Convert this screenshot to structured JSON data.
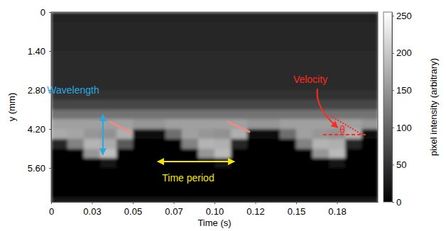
{
  "chart_data": {
    "type": "heatmap",
    "xlabel": "Time (s)",
    "ylabel": "y (mm)",
    "xlim": [
      0,
      0.2
    ],
    "ylim": [
      6.82,
      0
    ],
    "xticks": [
      0,
      {
        "value": 0.025,
        "label": "0.03"
      },
      0.05,
      {
        "value": 0.075,
        "label": "0.07"
      },
      {
        "value": 0.1,
        "label": "0.10"
      },
      {
        "value": 0.125,
        "label": "0.12"
      },
      0.15,
      {
        "value": 0.175,
        "label": "0.18"
      }
    ],
    "yticks": [
      0,
      {
        "value": 1.4,
        "label": "1.40"
      },
      {
        "value": 2.8,
        "label": "2.80"
      },
      {
        "value": 4.2,
        "label": "4.20"
      },
      {
        "value": 5.6,
        "label": "5.60"
      }
    ],
    "x_bins": [
      0,
      0.01,
      0.02,
      0.03,
      0.04,
      0.05,
      0.06,
      0.07,
      0.08,
      0.09,
      0.1,
      0.11,
      0.12,
      0.13,
      0.14,
      0.15,
      0.16,
      0.17,
      0.18,
      0.19,
      0.2
    ],
    "y_bins": [
      0,
      0.35,
      0.7,
      1.05,
      1.4,
      1.75,
      2.1,
      2.45,
      2.8,
      3.15,
      3.5,
      3.85,
      4.2,
      4.55,
      4.9,
      5.25,
      5.6,
      5.95,
      6.3,
      6.65,
      7.0
    ],
    "cells": [
      [
        32,
        32,
        32,
        32,
        32,
        32,
        32,
        32,
        32,
        32,
        32,
        32,
        32,
        32,
        32,
        32,
        32,
        32,
        32,
        32
      ],
      [
        38,
        38,
        38,
        38,
        38,
        38,
        38,
        38,
        38,
        38,
        38,
        38,
        38,
        38,
        38,
        38,
        38,
        38,
        38,
        38
      ],
      [
        38,
        38,
        38,
        38,
        38,
        38,
        38,
        38,
        38,
        38,
        38,
        38,
        38,
        38,
        38,
        38,
        38,
        38,
        38,
        38
      ],
      [
        38,
        38,
        38,
        38,
        38,
        38,
        38,
        38,
        38,
        38,
        38,
        38,
        38,
        38,
        38,
        38,
        38,
        38,
        38,
        38
      ],
      [
        42,
        42,
        42,
        42,
        42,
        42,
        42,
        42,
        42,
        42,
        42,
        42,
        42,
        42,
        42,
        42,
        42,
        42,
        42,
        42
      ],
      [
        42,
        42,
        42,
        42,
        42,
        42,
        42,
        42,
        42,
        42,
        42,
        42,
        42,
        42,
        42,
        42,
        42,
        42,
        42,
        42
      ],
      [
        42,
        42,
        42,
        42,
        42,
        42,
        42,
        42,
        42,
        42,
        42,
        42,
        42,
        42,
        42,
        42,
        42,
        42,
        42,
        42
      ],
      [
        42,
        42,
        42,
        42,
        42,
        42,
        42,
        42,
        42,
        42,
        42,
        42,
        42,
        42,
        42,
        42,
        42,
        42,
        42,
        42
      ],
      [
        48,
        48,
        48,
        48,
        48,
        48,
        48,
        48,
        48,
        48,
        48,
        48,
        48,
        48,
        48,
        48,
        48,
        48,
        48,
        48
      ],
      [
        70,
        70,
        70,
        70,
        70,
        70,
        70,
        70,
        70,
        70,
        70,
        70,
        70,
        70,
        70,
        70,
        70,
        70,
        70,
        70
      ],
      [
        115,
        115,
        115,
        115,
        115,
        115,
        115,
        115,
        115,
        115,
        115,
        115,
        115,
        115,
        115,
        115,
        115,
        115,
        115,
        115
      ],
      [
        160,
        160,
        160,
        160,
        160,
        150,
        150,
        160,
        160,
        160,
        160,
        160,
        150,
        150,
        160,
        160,
        160,
        160,
        160,
        150
      ],
      [
        170,
        165,
        150,
        145,
        175,
        15,
        10,
        110,
        160,
        150,
        145,
        175,
        10,
        15,
        110,
        160,
        150,
        145,
        175,
        10
      ],
      [
        40,
        130,
        180,
        170,
        90,
        5,
        5,
        5,
        130,
        180,
        175,
        40,
        5,
        5,
        5,
        130,
        180,
        175,
        40,
        5
      ],
      [
        5,
        5,
        150,
        190,
        5,
        5,
        5,
        5,
        5,
        150,
        185,
        5,
        5,
        5,
        5,
        5,
        150,
        185,
        5,
        5
      ],
      [
        5,
        5,
        5,
        20,
        5,
        5,
        5,
        5,
        5,
        5,
        20,
        5,
        5,
        5,
        5,
        5,
        5,
        20,
        5,
        5
      ],
      [
        3,
        3,
        3,
        3,
        3,
        3,
        3,
        3,
        3,
        3,
        3,
        3,
        3,
        3,
        3,
        3,
        3,
        3,
        3,
        3
      ],
      [
        3,
        3,
        3,
        3,
        3,
        3,
        3,
        3,
        3,
        3,
        3,
        3,
        3,
        3,
        3,
        3,
        3,
        3,
        3,
        3
      ],
      [
        5,
        5,
        5,
        5,
        5,
        5,
        5,
        5,
        5,
        5,
        5,
        5,
        5,
        5,
        5,
        5,
        5,
        5,
        5,
        5
      ],
      [
        25,
        25,
        25,
        25,
        25,
        25,
        25,
        25,
        25,
        25,
        25,
        25,
        25,
        25,
        25,
        25,
        25,
        25,
        25,
        25
      ]
    ],
    "colorbar": {
      "label": "pixel intensity (arbitrary)",
      "lim": [
        0,
        255
      ],
      "ticks": [
        0,
        50,
        100,
        150,
        200,
        250
      ]
    },
    "streaks": [
      {
        "x": [
          0.0361,
          0.0491
        ],
        "y": [
          3.95,
          4.33
        ],
        "color": "#f28b82"
      },
      {
        "x": [
          0.1083,
          0.1213
        ],
        "y": [
          3.95,
          4.3
        ],
        "color": "#f28b82"
      }
    ],
    "annotations": [
      {
        "text": "Wavelength",
        "color": "#29a8e0",
        "at": [
          0.0135,
          2.83
        ],
        "arrow": {
          "x": [
            0.0317,
            0.0317
          ],
          "y": [
            3.69,
            5.12
          ],
          "line_style": "solid"
        }
      },
      {
        "text": "Time period",
        "color": "#f5e600",
        "at": [
          0.0839,
          5.98
        ],
        "arrow": {
          "x": [
            0.0652,
            0.1122
          ],
          "y": [
            5.37,
            5.37
          ],
          "line_style": "solid"
        }
      },
      {
        "text": "Velocity",
        "color": "#ff2a20",
        "at": [
          0.1587,
          2.44
        ],
        "arrow": {
          "x": [
            0.163,
            0.1755
          ],
          "y": [
            2.75,
            4.15
          ],
          "line_style": "curved"
        },
        "lines": [
          {
            "x": [
              0.1709,
              0.1904
            ],
            "y": [
              3.72,
              4.4
            ],
            "line_style": "dotted"
          },
          {
            "x": [
              0.1665,
              0.1926
            ],
            "y": [
              4.4,
              4.4
            ],
            "line_style": "dashed"
          }
        ]
      },
      {
        "text": "θ",
        "color": "#ff2a20",
        "at": [
          0.1783,
          4.25
        ]
      }
    ]
  }
}
